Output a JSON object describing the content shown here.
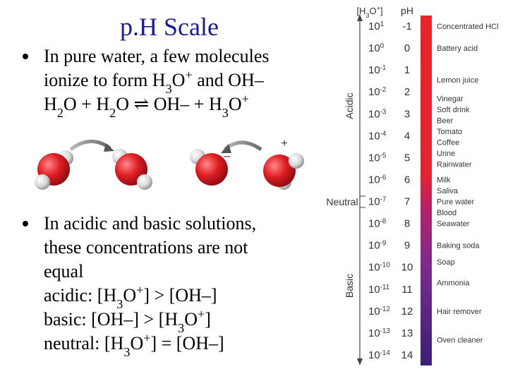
{
  "title": "p.H Scale",
  "bullets": [
    {
      "lines": [
        [
          {
            "t": "In pure water, a few molecules"
          }
        ],
        [
          {
            "t": "ionize to form H"
          },
          {
            "sub": "3"
          },
          {
            "t": "O"
          },
          {
            "sup": "+"
          },
          {
            "t": " and OH–"
          }
        ],
        [
          {
            "t": "H"
          },
          {
            "sub": "2"
          },
          {
            "t": "O + H"
          },
          {
            "sub": "2"
          },
          {
            "t": "O ⇌ OH– + H"
          },
          {
            "sub": "3"
          },
          {
            "t": "O"
          },
          {
            "sup": "+"
          }
        ]
      ]
    },
    {
      "lines": [
        [
          {
            "t": "In acidic and basic solutions,"
          }
        ],
        [
          {
            "t": "these concentrations are not"
          }
        ],
        [
          {
            "t": "equal"
          }
        ],
        [
          {
            "t": "acidic:  [H"
          },
          {
            "sub": "3"
          },
          {
            "t": "O"
          },
          {
            "sup": "+"
          },
          {
            "t": "] > [OH–]"
          }
        ],
        [
          {
            "t": "basic:  [OH–] > [H"
          },
          {
            "sub": "3"
          },
          {
            "t": "O"
          },
          {
            "sup": "+"
          },
          {
            "t": "]"
          }
        ],
        [
          {
            "t": "neutral: [H"
          },
          {
            "sub": "3"
          },
          {
            "t": "O"
          },
          {
            "sup": "+"
          },
          {
            "t": "] = [OH–]"
          }
        ]
      ]
    }
  ],
  "diagram": {
    "minus": "–",
    "plus": "+"
  },
  "scale": {
    "conc_header": [
      {
        "t": "[H"
      },
      {
        "sub": "3"
      },
      {
        "t": "O"
      },
      {
        "sup": "+"
      },
      {
        "t": "]"
      }
    ],
    "ph_header": "pH",
    "base": "10",
    "exponents": [
      1,
      0,
      -1,
      -2,
      -3,
      -4,
      -5,
      -6,
      -7,
      -8,
      -9,
      -10,
      -11,
      -12,
      -13,
      -14
    ],
    "ph": [
      -1,
      0,
      1,
      2,
      3,
      4,
      5,
      6,
      7,
      8,
      9,
      10,
      11,
      12,
      13,
      14
    ],
    "acidic": "Acidic",
    "neutral": "Neutral",
    "basic": "Basic",
    "examples": [
      {
        "text": "Concentrated HCl",
        "ph": -1
      },
      {
        "text": "Battery acid",
        "ph": 0
      },
      {
        "text": "Lemon juice",
        "ph": 1.45
      },
      {
        "text": "Vinegar",
        "ph": 2.3
      },
      {
        "text": "Soft drink",
        "ph": 2.8
      },
      {
        "text": "Beer",
        "ph": 3.3
      },
      {
        "text": "Tomato",
        "ph": 3.8
      },
      {
        "text": "Coffee",
        "ph": 4.3
      },
      {
        "text": "Urine",
        "ph": 4.8
      },
      {
        "text": "Rainwater",
        "ph": 5.3
      },
      {
        "text": "Milk",
        "ph": 6.0
      },
      {
        "text": "Saliva",
        "ph": 6.5
      },
      {
        "text": "Pure water",
        "ph": 7.0
      },
      {
        "text": "Blood",
        "ph": 7.5
      },
      {
        "text": "Seawater",
        "ph": 8.0
      },
      {
        "text": "Baking soda",
        "ph": 9.0
      },
      {
        "text": "Soap",
        "ph": 9.75
      },
      {
        "text": "Ammonia",
        "ph": 10.7
      },
      {
        "text": "Hair remover",
        "ph": 12.0
      },
      {
        "text": "Oven cleaner",
        "ph": 13.3
      }
    ]
  }
}
